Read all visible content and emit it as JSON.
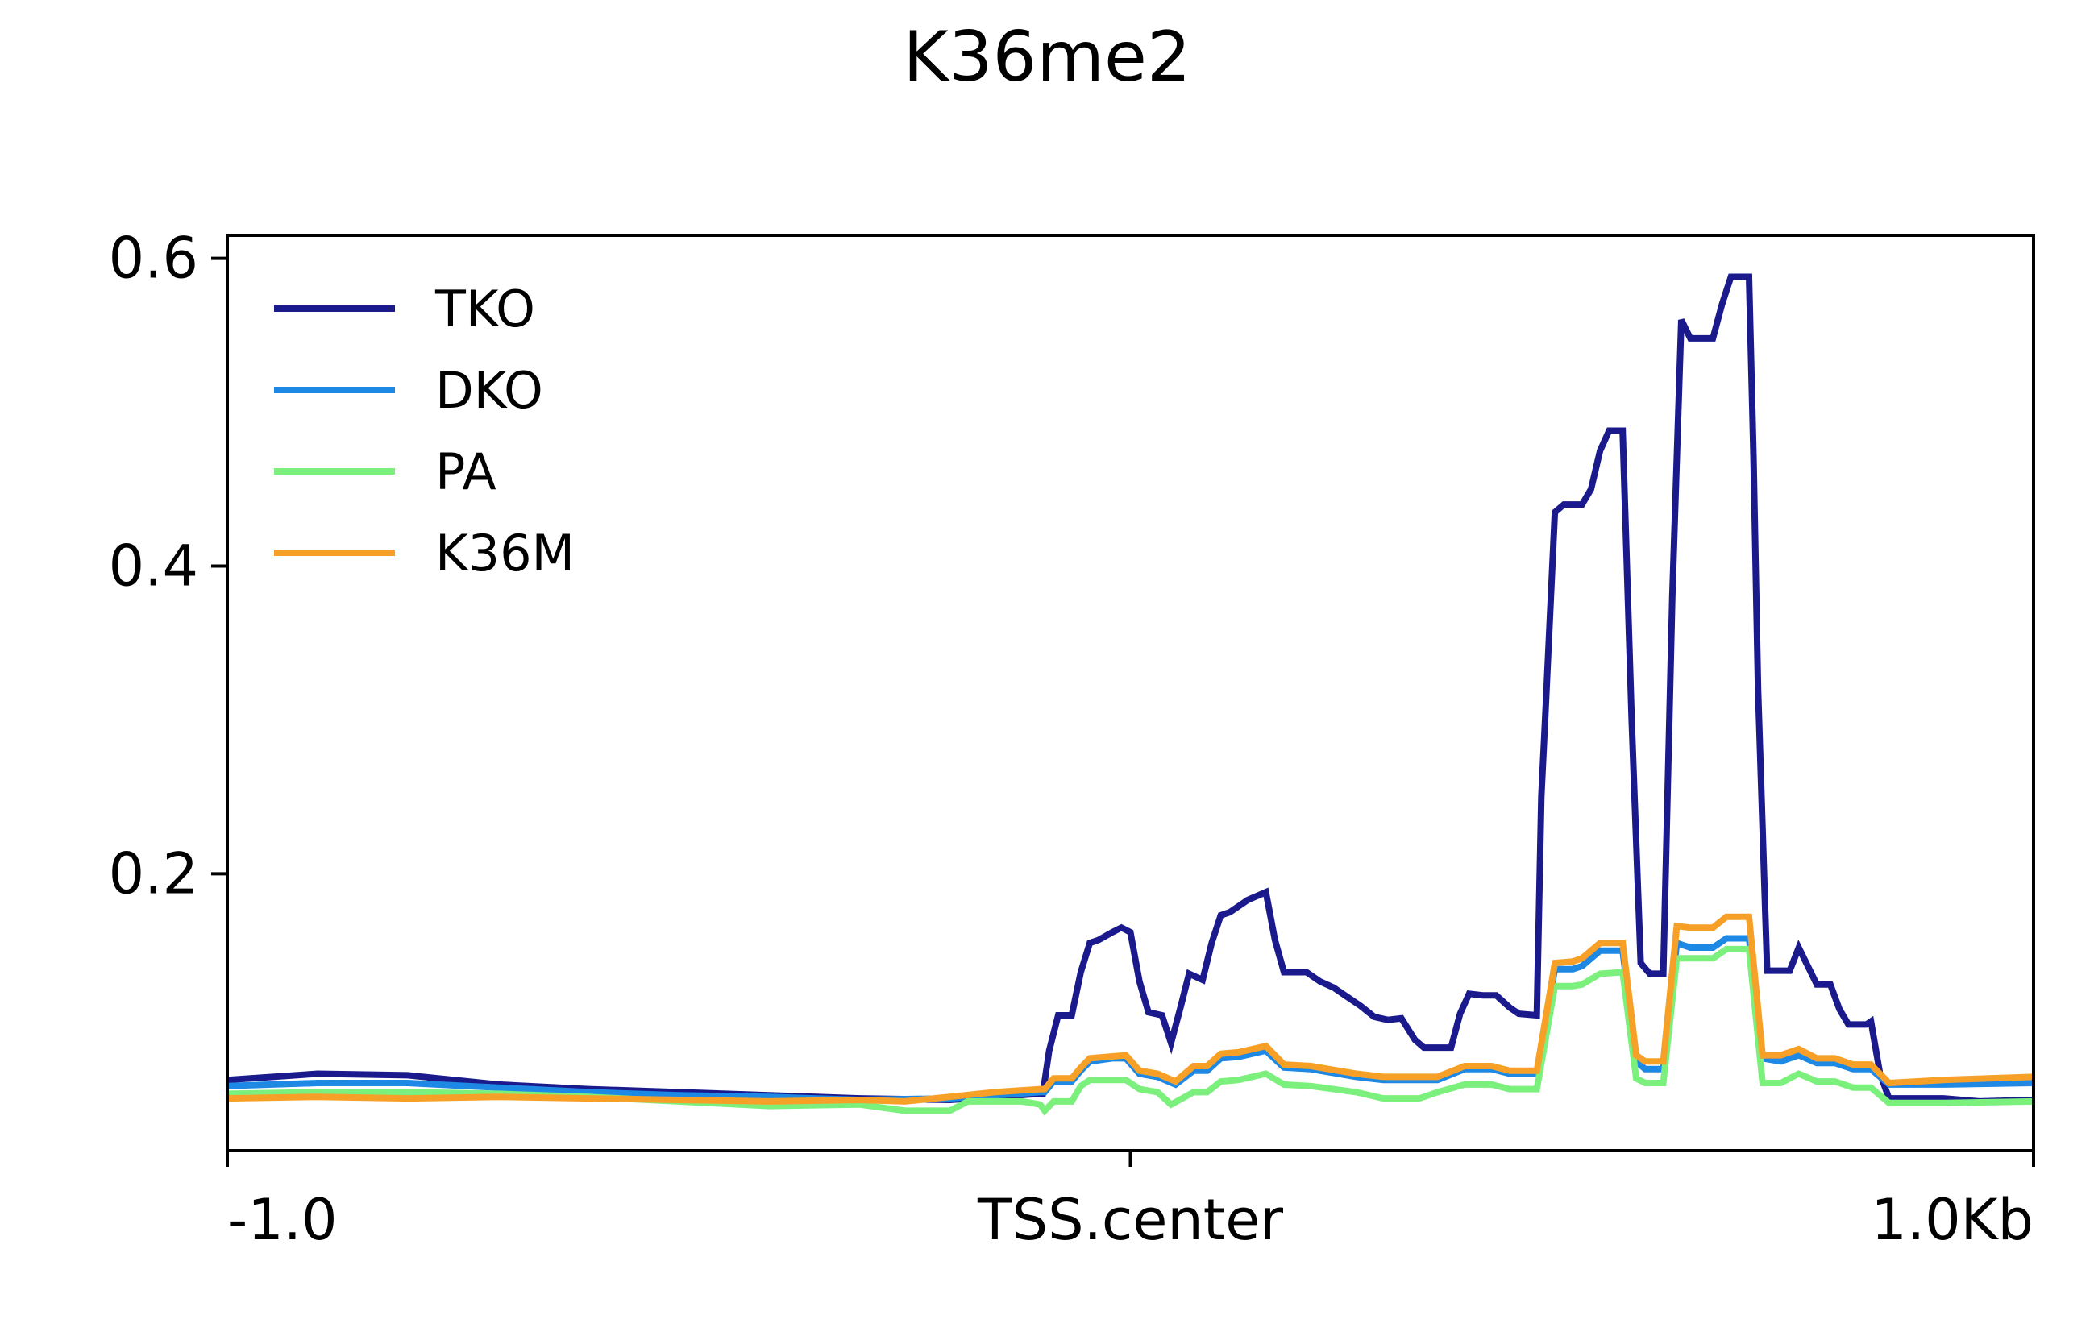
{
  "chart_data": {
    "type": "line",
    "title": "K36me2",
    "xlabel": "",
    "ylabel": "",
    "xlim": [
      -1.0,
      1.0
    ],
    "ylim": [
      0.02,
      0.615
    ],
    "x_ticks": [
      {
        "value": -1.0,
        "label": "-1.0"
      },
      {
        "value": 0.0,
        "label": "TSS.center"
      },
      {
        "value": 1.0,
        "label": "1.0Kb"
      }
    ],
    "y_ticks": [
      {
        "value": 0.2,
        "label": "0.2"
      },
      {
        "value": 0.4,
        "label": "0.4"
      },
      {
        "value": 0.6,
        "label": "0.6"
      }
    ],
    "grid": false,
    "legend_position": "top-left",
    "series": [
      {
        "name": "TKO",
        "color": "#1a1a8c",
        "points": [
          [
            -1.0,
            0.066
          ],
          [
            -0.9,
            0.07
          ],
          [
            -0.8,
            0.069
          ],
          [
            -0.7,
            0.063
          ],
          [
            -0.6,
            0.06
          ],
          [
            -0.5,
            0.058
          ],
          [
            -0.4,
            0.056
          ],
          [
            -0.3,
            0.054
          ],
          [
            -0.2,
            0.053
          ],
          [
            -0.1,
            0.057
          ],
          [
            -0.097,
            0.057
          ],
          [
            -0.09,
            0.085
          ],
          [
            -0.08,
            0.108
          ],
          [
            -0.065,
            0.108
          ],
          [
            -0.055,
            0.136
          ],
          [
            -0.045,
            0.155
          ],
          [
            -0.035,
            0.157
          ],
          [
            -0.02,
            0.162
          ],
          [
            -0.01,
            0.165
          ],
          [
            0.0,
            0.162
          ],
          [
            0.01,
            0.13
          ],
          [
            0.02,
            0.11
          ],
          [
            0.035,
            0.108
          ],
          [
            0.045,
            0.09
          ],
          [
            0.055,
            0.112
          ],
          [
            0.065,
            0.135
          ],
          [
            0.08,
            0.131
          ],
          [
            0.09,
            0.155
          ],
          [
            0.1,
            0.173
          ],
          [
            0.11,
            0.175
          ],
          [
            0.13,
            0.183
          ],
          [
            0.15,
            0.188
          ],
          [
            0.16,
            0.157
          ],
          [
            0.17,
            0.136
          ],
          [
            0.195,
            0.136
          ],
          [
            0.21,
            0.13
          ],
          [
            0.225,
            0.126
          ],
          [
            0.24,
            0.12
          ],
          [
            0.255,
            0.114
          ],
          [
            0.27,
            0.107
          ],
          [
            0.285,
            0.105
          ],
          [
            0.3,
            0.106
          ],
          [
            0.315,
            0.092
          ],
          [
            0.325,
            0.087
          ],
          [
            0.355,
            0.087
          ],
          [
            0.365,
            0.109
          ],
          [
            0.375,
            0.122
          ],
          [
            0.39,
            0.121
          ],
          [
            0.405,
            0.121
          ],
          [
            0.42,
            0.113
          ],
          [
            0.43,
            0.109
          ],
          [
            0.45,
            0.108
          ],
          [
            0.455,
            0.25
          ],
          [
            0.46,
            0.31
          ],
          [
            0.47,
            0.435
          ],
          [
            0.48,
            0.44
          ],
          [
            0.5,
            0.44
          ],
          [
            0.51,
            0.45
          ],
          [
            0.52,
            0.475
          ],
          [
            0.53,
            0.488
          ],
          [
            0.545,
            0.488
          ],
          [
            0.555,
            0.3
          ],
          [
            0.565,
            0.142
          ],
          [
            0.575,
            0.135
          ],
          [
            0.59,
            0.135
          ],
          [
            0.6,
            0.38
          ],
          [
            0.61,
            0.56
          ],
          [
            0.62,
            0.548
          ],
          [
            0.645,
            0.548
          ],
          [
            0.655,
            0.57
          ],
          [
            0.665,
            0.588
          ],
          [
            0.685,
            0.588
          ],
          [
            0.69,
            0.47
          ],
          [
            0.695,
            0.32
          ],
          [
            0.705,
            0.137
          ],
          [
            0.73,
            0.137
          ],
          [
            0.74,
            0.152
          ],
          [
            0.75,
            0.14
          ],
          [
            0.76,
            0.128
          ],
          [
            0.775,
            0.128
          ],
          [
            0.785,
            0.112
          ],
          [
            0.795,
            0.102
          ],
          [
            0.815,
            0.102
          ],
          [
            0.82,
            0.104
          ],
          [
            0.83,
            0.07
          ],
          [
            0.84,
            0.054
          ],
          [
            0.9,
            0.054
          ],
          [
            0.94,
            0.052
          ],
          [
            1.0,
            0.053
          ]
        ]
      },
      {
        "name": "DKO",
        "color": "#1e88e5",
        "points": [
          [
            -1.0,
            0.062
          ],
          [
            -0.9,
            0.064
          ],
          [
            -0.8,
            0.064
          ],
          [
            -0.7,
            0.061
          ],
          [
            -0.6,
            0.058
          ],
          [
            -0.5,
            0.056
          ],
          [
            -0.4,
            0.055
          ],
          [
            -0.3,
            0.053
          ],
          [
            -0.2,
            0.054
          ],
          [
            -0.1,
            0.058
          ],
          [
            -0.095,
            0.058
          ],
          [
            -0.085,
            0.065
          ],
          [
            -0.065,
            0.065
          ],
          [
            -0.055,
            0.072
          ],
          [
            -0.045,
            0.078
          ],
          [
            -0.02,
            0.08
          ],
          [
            -0.005,
            0.08
          ],
          [
            0.01,
            0.07
          ],
          [
            0.03,
            0.068
          ],
          [
            0.05,
            0.063
          ],
          [
            0.07,
            0.072
          ],
          [
            0.085,
            0.072
          ],
          [
            0.1,
            0.08
          ],
          [
            0.12,
            0.081
          ],
          [
            0.15,
            0.085
          ],
          [
            0.17,
            0.074
          ],
          [
            0.2,
            0.073
          ],
          [
            0.25,
            0.068
          ],
          [
            0.28,
            0.066
          ],
          [
            0.32,
            0.066
          ],
          [
            0.34,
            0.066
          ],
          [
            0.37,
            0.073
          ],
          [
            0.4,
            0.073
          ],
          [
            0.42,
            0.07
          ],
          [
            0.45,
            0.07
          ],
          [
            0.47,
            0.138
          ],
          [
            0.49,
            0.138
          ],
          [
            0.5,
            0.14
          ],
          [
            0.52,
            0.15
          ],
          [
            0.545,
            0.15
          ],
          [
            0.56,
            0.078
          ],
          [
            0.57,
            0.073
          ],
          [
            0.59,
            0.073
          ],
          [
            0.605,
            0.155
          ],
          [
            0.62,
            0.152
          ],
          [
            0.645,
            0.152
          ],
          [
            0.66,
            0.158
          ],
          [
            0.685,
            0.158
          ],
          [
            0.7,
            0.08
          ],
          [
            0.72,
            0.078
          ],
          [
            0.74,
            0.082
          ],
          [
            0.76,
            0.077
          ],
          [
            0.78,
            0.077
          ],
          [
            0.8,
            0.073
          ],
          [
            0.82,
            0.073
          ],
          [
            0.84,
            0.063
          ],
          [
            0.9,
            0.063
          ],
          [
            1.0,
            0.064
          ]
        ]
      },
      {
        "name": "PA",
        "color": "#7cf07c",
        "points": [
          [
            -1.0,
            0.057
          ],
          [
            -0.9,
            0.058
          ],
          [
            -0.8,
            0.058
          ],
          [
            -0.7,
            0.057
          ],
          [
            -0.6,
            0.055
          ],
          [
            -0.5,
            0.052
          ],
          [
            -0.4,
            0.049
          ],
          [
            -0.3,
            0.05
          ],
          [
            -0.25,
            0.046
          ],
          [
            -0.2,
            0.046
          ],
          [
            -0.18,
            0.052
          ],
          [
            -0.12,
            0.052
          ],
          [
            -0.1,
            0.05
          ],
          [
            -0.095,
            0.046
          ],
          [
            -0.085,
            0.052
          ],
          [
            -0.065,
            0.052
          ],
          [
            -0.055,
            0.062
          ],
          [
            -0.045,
            0.066
          ],
          [
            -0.005,
            0.066
          ],
          [
            0.01,
            0.06
          ],
          [
            0.03,
            0.058
          ],
          [
            0.045,
            0.05
          ],
          [
            0.07,
            0.058
          ],
          [
            0.085,
            0.058
          ],
          [
            0.1,
            0.065
          ],
          [
            0.12,
            0.066
          ],
          [
            0.15,
            0.07
          ],
          [
            0.17,
            0.063
          ],
          [
            0.2,
            0.062
          ],
          [
            0.25,
            0.058
          ],
          [
            0.28,
            0.054
          ],
          [
            0.32,
            0.054
          ],
          [
            0.34,
            0.058
          ],
          [
            0.37,
            0.063
          ],
          [
            0.4,
            0.063
          ],
          [
            0.42,
            0.06
          ],
          [
            0.45,
            0.06
          ],
          [
            0.47,
            0.127
          ],
          [
            0.49,
            0.127
          ],
          [
            0.5,
            0.128
          ],
          [
            0.52,
            0.135
          ],
          [
            0.545,
            0.136
          ],
          [
            0.56,
            0.067
          ],
          [
            0.57,
            0.064
          ],
          [
            0.59,
            0.064
          ],
          [
            0.605,
            0.145
          ],
          [
            0.62,
            0.145
          ],
          [
            0.645,
            0.145
          ],
          [
            0.66,
            0.151
          ],
          [
            0.685,
            0.151
          ],
          [
            0.7,
            0.064
          ],
          [
            0.72,
            0.064
          ],
          [
            0.74,
            0.07
          ],
          [
            0.76,
            0.065
          ],
          [
            0.78,
            0.065
          ],
          [
            0.8,
            0.061
          ],
          [
            0.82,
            0.061
          ],
          [
            0.84,
            0.051
          ],
          [
            0.9,
            0.051
          ],
          [
            1.0,
            0.052
          ]
        ]
      },
      {
        "name": "K36M",
        "color": "#f7a028",
        "points": [
          [
            -1.0,
            0.054
          ],
          [
            -0.9,
            0.055
          ],
          [
            -0.8,
            0.054
          ],
          [
            -0.7,
            0.055
          ],
          [
            -0.6,
            0.054
          ],
          [
            -0.5,
            0.053
          ],
          [
            -0.4,
            0.052
          ],
          [
            -0.3,
            0.053
          ],
          [
            -0.25,
            0.052
          ],
          [
            -0.2,
            0.055
          ],
          [
            -0.15,
            0.058
          ],
          [
            -0.1,
            0.06
          ],
          [
            -0.095,
            0.06
          ],
          [
            -0.085,
            0.067
          ],
          [
            -0.065,
            0.067
          ],
          [
            -0.055,
            0.074
          ],
          [
            -0.045,
            0.08
          ],
          [
            -0.005,
            0.082
          ],
          [
            0.01,
            0.072
          ],
          [
            0.03,
            0.07
          ],
          [
            0.05,
            0.065
          ],
          [
            0.07,
            0.075
          ],
          [
            0.085,
            0.075
          ],
          [
            0.1,
            0.083
          ],
          [
            0.12,
            0.084
          ],
          [
            0.15,
            0.088
          ],
          [
            0.17,
            0.076
          ],
          [
            0.2,
            0.075
          ],
          [
            0.25,
            0.07
          ],
          [
            0.28,
            0.068
          ],
          [
            0.32,
            0.068
          ],
          [
            0.34,
            0.068
          ],
          [
            0.37,
            0.075
          ],
          [
            0.4,
            0.075
          ],
          [
            0.42,
            0.072
          ],
          [
            0.45,
            0.072
          ],
          [
            0.47,
            0.142
          ],
          [
            0.49,
            0.143
          ],
          [
            0.5,
            0.145
          ],
          [
            0.52,
            0.155
          ],
          [
            0.545,
            0.155
          ],
          [
            0.56,
            0.082
          ],
          [
            0.57,
            0.078
          ],
          [
            0.59,
            0.078
          ],
          [
            0.605,
            0.166
          ],
          [
            0.62,
            0.165
          ],
          [
            0.645,
            0.165
          ],
          [
            0.66,
            0.172
          ],
          [
            0.685,
            0.172
          ],
          [
            0.7,
            0.082
          ],
          [
            0.72,
            0.082
          ],
          [
            0.74,
            0.086
          ],
          [
            0.76,
            0.08
          ],
          [
            0.78,
            0.08
          ],
          [
            0.8,
            0.076
          ],
          [
            0.82,
            0.076
          ],
          [
            0.84,
            0.064
          ],
          [
            0.9,
            0.066
          ],
          [
            1.0,
            0.068
          ]
        ]
      }
    ]
  }
}
